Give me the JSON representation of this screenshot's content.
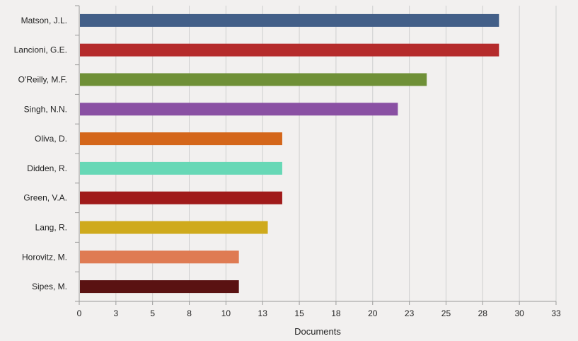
{
  "chart_data": {
    "type": "bar",
    "orientation": "horizontal",
    "xlabel": "Documents",
    "ylabel": "",
    "title": "",
    "xlim": [
      0,
      33
    ],
    "xticks": [
      "0",
      "3",
      "5",
      "8",
      "10",
      "13",
      "15",
      "18",
      "20",
      "23",
      "25",
      "28",
      "30",
      "33"
    ],
    "grid": "vertical",
    "legend": "none",
    "categories": [
      "Matson, J.L.",
      "Lancioni, G.E.",
      "O'Reilly, M.F.",
      "Singh, N.N.",
      "Oliva, D.",
      "Didden, R.",
      "Green, V.A.",
      "Lang, R.",
      "Horovitz, M.",
      "Sipes, M."
    ],
    "values": [
      29,
      29,
      24,
      22,
      14,
      14,
      14,
      13,
      11,
      11
    ],
    "colors": [
      "#435f88",
      "#b52b2b",
      "#6f9037",
      "#8a50a3",
      "#d4661a",
      "#67d8b6",
      "#a01a1a",
      "#cfaa1c",
      "#df7b53",
      "#5a1212"
    ]
  }
}
